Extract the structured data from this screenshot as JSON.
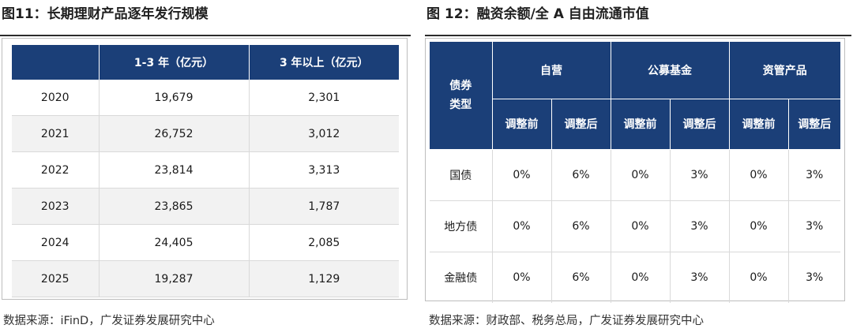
{
  "left": {
    "title": "图11：长期理财产品逐年发行规模",
    "headers": [
      "",
      "1-3 年（亿元）",
      "3 年以上（亿元）"
    ],
    "rows": [
      [
        "2020",
        "19,679",
        "2,301"
      ],
      [
        "2021",
        "26,752",
        "3,012"
      ],
      [
        "2022",
        "23,814",
        "3,313"
      ],
      [
        "2023",
        "23,865",
        "1,787"
      ],
      [
        "2024",
        "24,405",
        "2,085"
      ],
      [
        "2025",
        "19,287",
        "1,129"
      ]
    ],
    "source": "数据来源：iFinD，广发证券发展研究中心"
  },
  "right": {
    "title": "图 12：融资余额/全 A 自由流通市值",
    "corner_header": "债券\n类型",
    "group_headers": [
      "自营",
      "公募基金",
      "资管产品"
    ],
    "sub_headers": [
      "调整前",
      "调整后",
      "调整前",
      "调整后",
      "调整前",
      "调整后"
    ],
    "rows": [
      [
        "国债",
        "0%",
        "6%",
        "0%",
        "3%",
        "0%",
        "3%"
      ],
      [
        "地方债",
        "0%",
        "6%",
        "0%",
        "3%",
        "0%",
        "3%"
      ],
      [
        "金融债",
        "0%",
        "6%",
        "0%",
        "3%",
        "0%",
        "3%"
      ]
    ],
    "source": "数据来源：财政部、税务总局，广发证券发展研究中心"
  },
  "colors": {
    "header_bg": "#1b3f78",
    "alt_row_bg": "#f2f2f2",
    "grid": "#d9d9d9"
  }
}
